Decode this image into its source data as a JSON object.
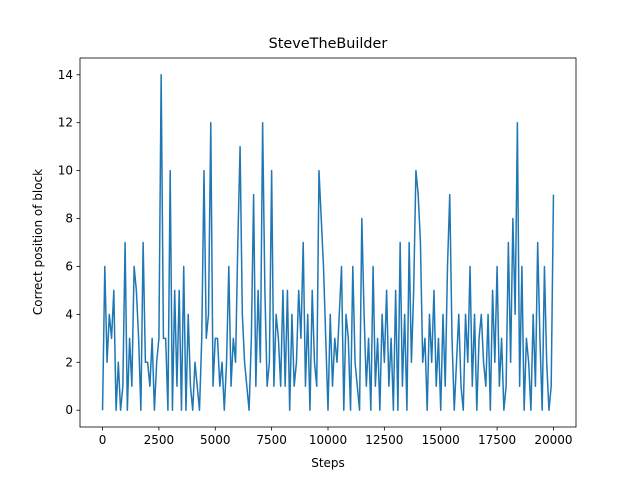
{
  "chart_data": {
    "type": "line",
    "title": "SteveTheBuilder",
    "x_label": "Steps",
    "y_label": "Correct position of block",
    "x": [
      0,
      100,
      200,
      300,
      400,
      500,
      600,
      700,
      800,
      900,
      1000,
      1100,
      1200,
      1300,
      1400,
      1500,
      1600,
      1700,
      1800,
      1900,
      2000,
      2100,
      2200,
      2300,
      2400,
      2500,
      2600,
      2700,
      2800,
      2900,
      3000,
      3100,
      3200,
      3300,
      3400,
      3500,
      3600,
      3700,
      3800,
      3900,
      4000,
      4100,
      4200,
      4300,
      4400,
      4500,
      4600,
      4700,
      4800,
      4900,
      5000,
      5100,
      5200,
      5300,
      5400,
      5500,
      5600,
      5700,
      5800,
      5900,
      6000,
      6100,
      6200,
      6300,
      6400,
      6500,
      6600,
      6700,
      6800,
      6900,
      7000,
      7100,
      7200,
      7300,
      7400,
      7500,
      7600,
      7700,
      7800,
      7900,
      8000,
      8100,
      8200,
      8300,
      8400,
      8500,
      8600,
      8700,
      8800,
      8900,
      9000,
      9100,
      9200,
      9300,
      9400,
      9500,
      9600,
      9700,
      9800,
      9900,
      10000,
      10100,
      10200,
      10300,
      10400,
      10500,
      10600,
      10700,
      10800,
      10900,
      11000,
      11100,
      11200,
      11300,
      11400,
      11500,
      11600,
      11700,
      11800,
      11900,
      12000,
      12100,
      12200,
      12300,
      12400,
      12500,
      12600,
      12700,
      12800,
      12900,
      13000,
      13100,
      13200,
      13300,
      13400,
      13500,
      13600,
      13700,
      13800,
      13900,
      14000,
      14100,
      14200,
      14300,
      14400,
      14500,
      14600,
      14700,
      14800,
      14900,
      15000,
      15100,
      15200,
      15300,
      15400,
      15500,
      15600,
      15700,
      15800,
      15900,
      16000,
      16100,
      16200,
      16300,
      16400,
      16500,
      16600,
      16700,
      16800,
      16900,
      17000,
      17100,
      17200,
      17300,
      17400,
      17500,
      17600,
      17700,
      17800,
      17900,
      18000,
      18100,
      18200,
      18300,
      18400,
      18500,
      18600,
      18700,
      18800,
      18900,
      19000,
      19100,
      19200,
      19300,
      19400,
      19500,
      19600,
      19700,
      19800,
      19900,
      20000
    ],
    "series": [
      {
        "name": "SteveTheBuilder",
        "color": "#1f77b4",
        "values": [
          0,
          6,
          2,
          4,
          3,
          5,
          0,
          2,
          0,
          1,
          7,
          0,
          3,
          1,
          6,
          5,
          3,
          0,
          7,
          2,
          2,
          1,
          3,
          0,
          2,
          3,
          14,
          3,
          3,
          0,
          10,
          0,
          5,
          1,
          5,
          0,
          6,
          0,
          4,
          1,
          0,
          2,
          1,
          0,
          3,
          10,
          3,
          4,
          12,
          1,
          3,
          3,
          1,
          2,
          0,
          2,
          6,
          1,
          3,
          2,
          7,
          11,
          4,
          2,
          1,
          0,
          3,
          9,
          1,
          5,
          2,
          12,
          5,
          1,
          2,
          10,
          1,
          4,
          3,
          1,
          5,
          1,
          5,
          0,
          4,
          1,
          2,
          5,
          3,
          7,
          1,
          4,
          0,
          5,
          2,
          1,
          10,
          8,
          6,
          3,
          0,
          4,
          1,
          3,
          2,
          4,
          6,
          0,
          4,
          3,
          0,
          6,
          2,
          1,
          0,
          8,
          4,
          1,
          3,
          0,
          6,
          1,
          3,
          0,
          4,
          2,
          5,
          1,
          3,
          0,
          5,
          0,
          7,
          1,
          4,
          0,
          7,
          2,
          5,
          10,
          9,
          7,
          2,
          3,
          0,
          4,
          2,
          5,
          1,
          3,
          0,
          4,
          1,
          6,
          9,
          3,
          0,
          2,
          4,
          1,
          0,
          4,
          2,
          6,
          1,
          4,
          0,
          3,
          4,
          2,
          1,
          4,
          0,
          5,
          2,
          6,
          1,
          3,
          0,
          1,
          7,
          2,
          8,
          4,
          12,
          1,
          6,
          0,
          3,
          2,
          0,
          4,
          1,
          7,
          3,
          0,
          6,
          2,
          0,
          1,
          9
        ]
      }
    ],
    "xlim": [
      -1000,
      21000
    ],
    "ylim": [
      -0.7,
      14.7
    ],
    "xticks": [
      0,
      2500,
      5000,
      7500,
      10000,
      12500,
      15000,
      17500,
      20000
    ],
    "yticks": [
      0,
      2,
      4,
      6,
      8,
      10,
      12,
      14
    ]
  }
}
